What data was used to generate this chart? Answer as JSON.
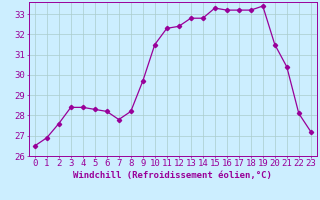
{
  "x": [
    0,
    1,
    2,
    3,
    4,
    5,
    6,
    7,
    8,
    9,
    10,
    11,
    12,
    13,
    14,
    15,
    16,
    17,
    18,
    19,
    20,
    21,
    22,
    23
  ],
  "y": [
    26.5,
    26.9,
    27.6,
    28.4,
    28.4,
    28.3,
    28.2,
    27.8,
    28.2,
    29.7,
    31.5,
    32.3,
    32.4,
    32.8,
    32.8,
    33.3,
    33.2,
    33.2,
    33.2,
    33.4,
    31.5,
    30.4,
    28.1,
    27.2
  ],
  "line_color": "#990099",
  "marker": "D",
  "markersize": 2.2,
  "bg_color": "#cceeff",
  "grid_color": "#aacccc",
  "xlabel": "Windchill (Refroidissement éolien,°C)",
  "xlabel_fontsize": 6.5,
  "tick_fontsize": 6.5,
  "ylim": [
    26,
    33.6
  ],
  "xlim": [
    -0.5,
    23.5
  ],
  "yticks": [
    26,
    27,
    28,
    29,
    30,
    31,
    32,
    33
  ],
  "xticks": [
    0,
    1,
    2,
    3,
    4,
    5,
    6,
    7,
    8,
    9,
    10,
    11,
    12,
    13,
    14,
    15,
    16,
    17,
    18,
    19,
    20,
    21,
    22,
    23
  ]
}
